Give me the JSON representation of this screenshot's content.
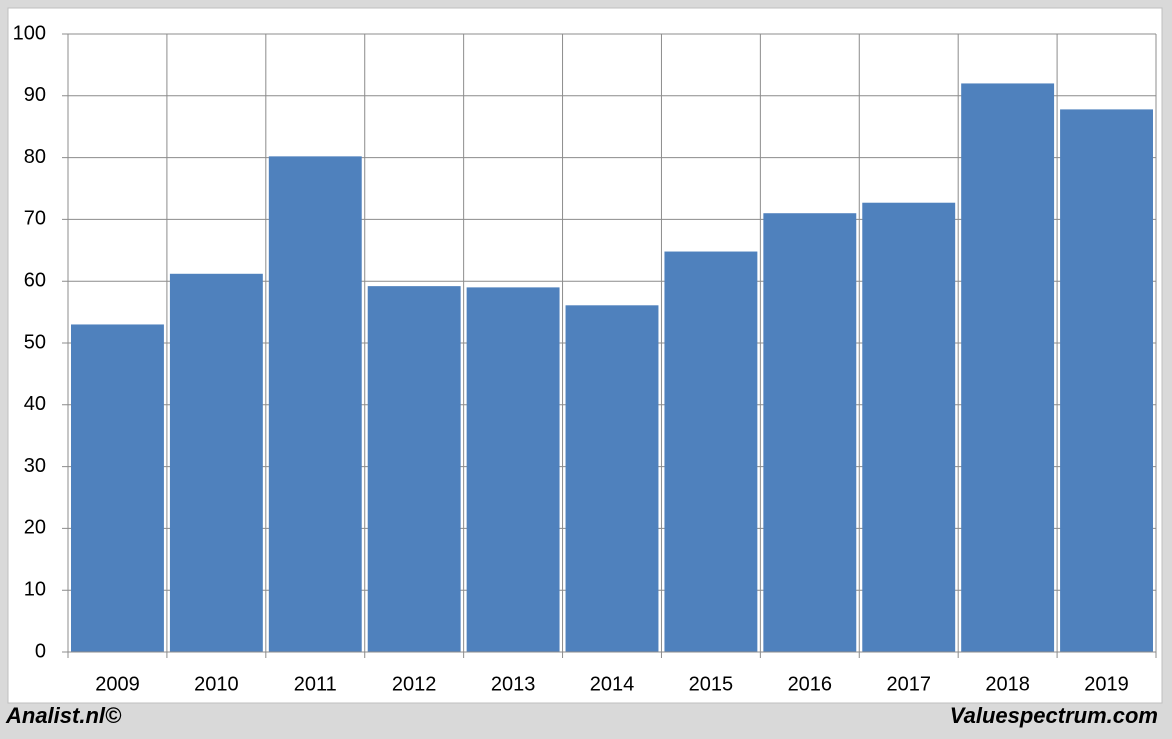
{
  "chart_data": {
    "type": "bar",
    "categories": [
      "2009",
      "2010",
      "2011",
      "2012",
      "2013",
      "2014",
      "2015",
      "2016",
      "2017",
      "2018",
      "2019"
    ],
    "values": [
      53,
      61.2,
      80.2,
      59.2,
      59,
      56.1,
      64.8,
      71,
      72.7,
      92,
      87.8
    ],
    "color": "#4f81bd",
    "ylim": [
      0,
      100
    ],
    "yticks": [
      0,
      10,
      20,
      30,
      40,
      50,
      60,
      70,
      80,
      90,
      100
    ],
    "grid": true
  },
  "footer": {
    "left": "Analist.nl©",
    "right": "Valuespectrum.com"
  }
}
